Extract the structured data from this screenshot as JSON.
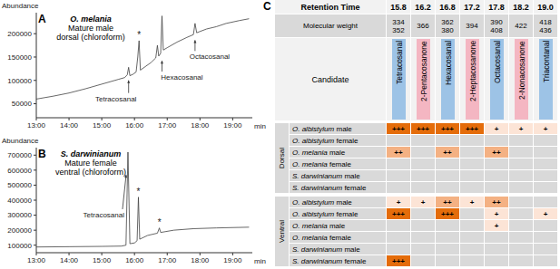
{
  "chart_data": [
    {
      "type": "line",
      "panel_label": "A",
      "title": "O. melania",
      "subtitle": [
        "Mature male",
        "dorsal (chloroform)"
      ],
      "y_label": "Abundance",
      "x_label": "min",
      "color": "#404040",
      "x": [
        13.0,
        13.5,
        14.0,
        14.5,
        15.0,
        15.5,
        15.7,
        15.78,
        15.82,
        15.86,
        15.95,
        16.05,
        16.1,
        16.14,
        16.18,
        16.3,
        16.5,
        16.65,
        16.7,
        16.74,
        16.8,
        16.84,
        16.88,
        17.0,
        17.3,
        17.6,
        17.8,
        17.85,
        17.9,
        18.2,
        18.5,
        18.8,
        19.2,
        19.5
      ],
      "values": [
        60000,
        66000,
        73000,
        82000,
        92000,
        102000,
        106000,
        112000,
        128000,
        110000,
        113000,
        118000,
        150000,
        185000,
        122000,
        128000,
        138000,
        148000,
        175000,
        152000,
        158000,
        238000,
        165000,
        170000,
        182000,
        192000,
        198000,
        222000,
        202000,
        210000,
        215000,
        222000,
        228000,
        232000
      ],
      "xlim": [
        13,
        19.6
      ],
      "xticks": [
        {
          "value": 13,
          "label": "13:00"
        },
        {
          "value": 14,
          "label": "14:00"
        },
        {
          "value": 15,
          "label": "15:00"
        },
        {
          "value": 16,
          "label": "16:00"
        },
        {
          "value": 17,
          "label": "17:00"
        },
        {
          "value": 18,
          "label": "18:00"
        },
        {
          "value": 19,
          "label": "19:00"
        }
      ],
      "ylim": [
        20000,
        245000
      ],
      "yticks": [
        50000,
        100000,
        150000,
        200000
      ],
      "annotations": [
        {
          "text": "Tetracosanal",
          "x": 15.82
        },
        {
          "text": "*",
          "x": 16.14
        },
        {
          "text": "Hexacosanal",
          "x": 16.84
        },
        {
          "text": "Octacosanal",
          "x": 17.85
        }
      ]
    },
    {
      "type": "line",
      "panel_label": "B",
      "title": "S. darwinianum",
      "subtitle": [
        "Mature female",
        "ventral (chloroform)"
      ],
      "y_label": "Abundance",
      "x_label": "min",
      "color": "#404040",
      "x": [
        13.0,
        14.0,
        15.0,
        15.6,
        15.74,
        15.8,
        15.86,
        16.0,
        16.08,
        16.12,
        16.16,
        16.4,
        16.7,
        16.76,
        16.8,
        17.2,
        17.8,
        18.5,
        19.5
      ],
      "values": [
        88000,
        90000,
        92000,
        94000,
        100000,
        720000,
        110000,
        115000,
        130000,
        420000,
        140000,
        165000,
        180000,
        215000,
        185000,
        200000,
        210000,
        215000,
        220000
      ],
      "xlim": [
        13,
        19.6
      ],
      "xticks": [
        {
          "value": 13,
          "label": "13:00"
        },
        {
          "value": 14,
          "label": "14:00"
        },
        {
          "value": 15,
          "label": "15:00"
        },
        {
          "value": 16,
          "label": "16:00"
        },
        {
          "value": 17,
          "label": "17:00"
        },
        {
          "value": 18,
          "label": "18:00"
        },
        {
          "value": 19,
          "label": "19:00"
        }
      ],
      "ylim": [
        50000,
        750000
      ],
      "yticks": [
        100000,
        200000,
        300000,
        400000,
        500000,
        600000,
        700000
      ],
      "annotations": [
        {
          "text": "Tetracosanal",
          "x": 15.8
        },
        {
          "text": "*",
          "x": 16.12
        },
        {
          "text": "*",
          "x": 16.76
        }
      ]
    }
  ],
  "table": {
    "panel_label": "C",
    "retention_time": {
      "label": "Retention Time",
      "values": [
        "15.8",
        "16.2",
        "16.8",
        "17.2",
        "17.8",
        "18.2",
        "19.0"
      ]
    },
    "molecular_weight": {
      "label": "Molecular weight",
      "values": [
        [
          334,
          352
        ],
        [
          366
        ],
        [
          362,
          380
        ],
        [
          394
        ],
        [
          390,
          408
        ],
        [
          422
        ],
        [
          418,
          436
        ]
      ]
    },
    "candidate": {
      "label": "Candidate",
      "values": [
        {
          "name": "Tetracosanal",
          "color": "#9dc3e6"
        },
        {
          "name": "2-Pentacosanone",
          "color": "#f4b6c2"
        },
        {
          "name": "Hexacosanal",
          "color": "#9dc3e6"
        },
        {
          "name": "2-Heptacosanone",
          "color": "#f4b6c2"
        },
        {
          "name": "Octacosanal",
          "color": "#9dc3e6"
        },
        {
          "name": "2-Nonacosanone",
          "color": "#f4b6c2"
        },
        {
          "name": "Triacontanal",
          "color": "#9dc3e6"
        }
      ]
    },
    "level_colors": {
      "+++": "#e46c0a",
      "++": "#f4b183",
      "+": "#fce4d6"
    },
    "groups": [
      {
        "label": "Dorsal",
        "rows": [
          {
            "species": "O. albistylum",
            "sex": "male",
            "cells": [
              "+++",
              "+++",
              "+++",
              "+++",
              "+",
              "+",
              "+"
            ]
          },
          {
            "species": "O. albistylum",
            "sex": "female",
            "cells": [
              null,
              null,
              null,
              null,
              null,
              null,
              null
            ]
          },
          {
            "species": "O. melania",
            "sex": "male",
            "cells": [
              "++",
              null,
              "++",
              null,
              "++",
              null,
              null
            ]
          },
          {
            "species": "O. melania",
            "sex": "female",
            "cells": [
              null,
              null,
              null,
              null,
              null,
              null,
              null
            ]
          },
          {
            "species": "S. darwinianum",
            "sex": "male",
            "cells": [
              null,
              null,
              null,
              null,
              null,
              null,
              null
            ]
          },
          {
            "species": "S. darwinianum",
            "sex": "female",
            "cells": [
              null,
              null,
              null,
              null,
              null,
              null,
              null
            ]
          }
        ]
      },
      {
        "label": "Ventral",
        "rows": [
          {
            "species": "O. albistylum",
            "sex": "male",
            "cells": [
              "+",
              "+",
              "++",
              "+",
              "++",
              null,
              null
            ]
          },
          {
            "species": "O. albistylum",
            "sex": "female",
            "cells": [
              "+++",
              null,
              "+++",
              null,
              "+",
              null,
              "+"
            ]
          },
          {
            "species": "O. melania",
            "sex": "male",
            "cells": [
              null,
              null,
              null,
              null,
              "+",
              null,
              null
            ]
          },
          {
            "species": "O. melania",
            "sex": "female",
            "cells": [
              null,
              null,
              null,
              null,
              null,
              null,
              null
            ]
          },
          {
            "species": "S. darwinianum",
            "sex": "male",
            "cells": [
              null,
              null,
              null,
              null,
              null,
              null,
              null
            ]
          },
          {
            "species": "S. darwinianum",
            "sex": "female",
            "cells": [
              "+++",
              null,
              null,
              null,
              null,
              null,
              null
            ]
          }
        ]
      }
    ]
  }
}
